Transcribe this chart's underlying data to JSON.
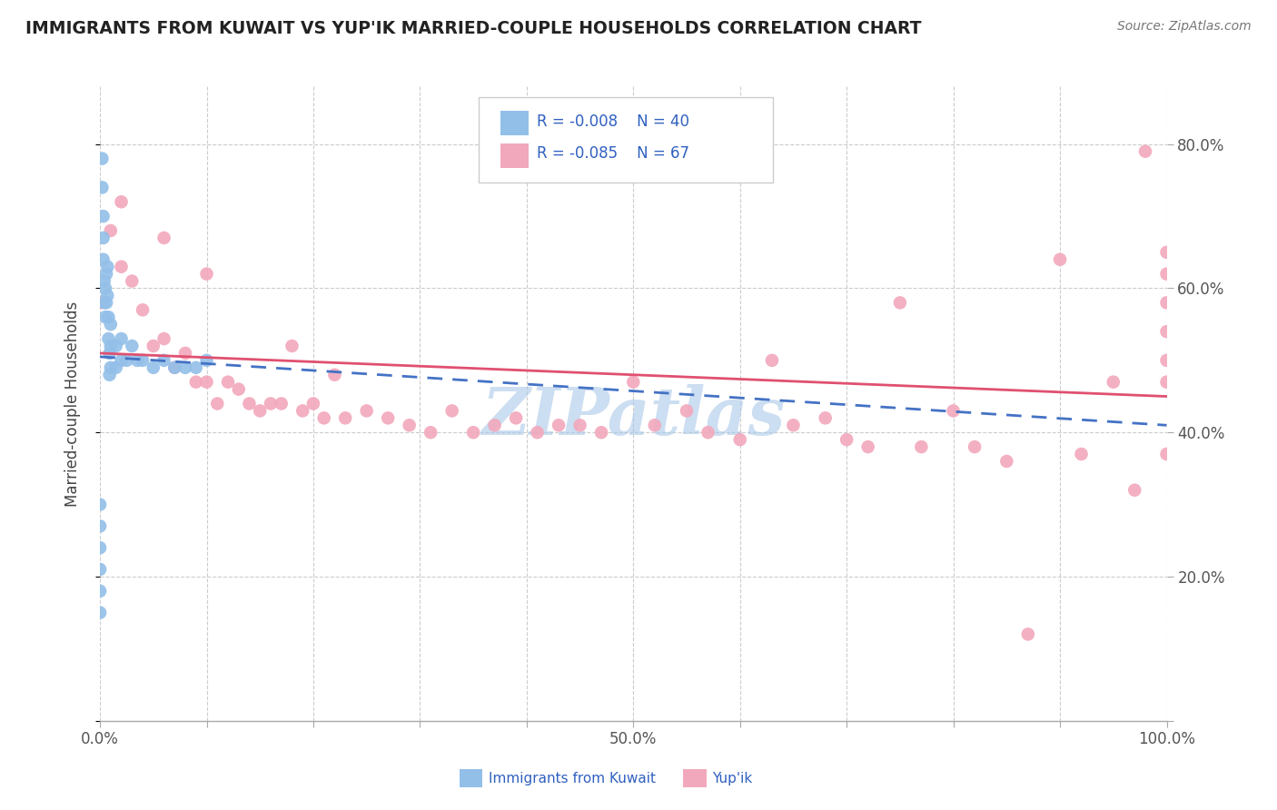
{
  "title": "IMMIGRANTS FROM KUWAIT VS YUP'IK MARRIED-COUPLE HOUSEHOLDS CORRELATION CHART",
  "source": "Source: ZipAtlas.com",
  "ylabel": "Married-couple Households",
  "xlim": [
    0.0,
    1.0
  ],
  "ylim": [
    0.0,
    0.88
  ],
  "x_ticks": [
    0.0,
    0.1,
    0.2,
    0.3,
    0.4,
    0.5,
    0.6,
    0.7,
    0.8,
    0.9,
    1.0
  ],
  "x_tick_labels": [
    "0.0%",
    "",
    "",
    "",
    "",
    "50.0%",
    "",
    "",
    "",
    "",
    "100.0%"
  ],
  "y_ticks": [
    0.0,
    0.2,
    0.4,
    0.6,
    0.8
  ],
  "y_tick_labels_right": [
    "",
    "20.0%",
    "40.0%",
    "60.0%",
    "80.0%"
  ],
  "series1_color": "#92bfe8",
  "series2_color": "#f2a8bc",
  "trendline1_color": "#4472c4",
  "trendline2_color": "#e05070",
  "watermark": "ZIPatlas",
  "watermark_color": "#aac8e8",
  "background_color": "#ffffff",
  "title_color": "#222222",
  "source_color": "#777777",
  "legend_text_color": "#3060c0",
  "blue_scatter_x": [
    0.002,
    0.002,
    0.003,
    0.003,
    0.003,
    0.004,
    0.004,
    0.005,
    0.005,
    0.006,
    0.006,
    0.007,
    0.007,
    0.008,
    0.008,
    0.009,
    0.009,
    0.01,
    0.01,
    0.01,
    0.015,
    0.015,
    0.02,
    0.02,
    0.025,
    0.03,
    0.035,
    0.04,
    0.05,
    0.06,
    0.07,
    0.08,
    0.09,
    0.1,
    0.0,
    0.0,
    0.0,
    0.0,
    0.0,
    0.0
  ],
  "blue_scatter_y": [
    0.78,
    0.74,
    0.7,
    0.67,
    0.64,
    0.61,
    0.58,
    0.6,
    0.56,
    0.62,
    0.58,
    0.63,
    0.59,
    0.56,
    0.53,
    0.51,
    0.48,
    0.55,
    0.52,
    0.49,
    0.52,
    0.49,
    0.53,
    0.5,
    0.5,
    0.52,
    0.5,
    0.5,
    0.49,
    0.5,
    0.49,
    0.49,
    0.49,
    0.5,
    0.3,
    0.27,
    0.24,
    0.21,
    0.18,
    0.15
  ],
  "pink_scatter_x": [
    0.0,
    0.01,
    0.02,
    0.03,
    0.04,
    0.05,
    0.06,
    0.07,
    0.08,
    0.09,
    0.1,
    0.11,
    0.12,
    0.13,
    0.14,
    0.15,
    0.16,
    0.17,
    0.18,
    0.19,
    0.2,
    0.21,
    0.22,
    0.23,
    0.25,
    0.27,
    0.29,
    0.31,
    0.33,
    0.35,
    0.37,
    0.39,
    0.41,
    0.43,
    0.45,
    0.47,
    0.5,
    0.52,
    0.55,
    0.57,
    0.6,
    0.63,
    0.65,
    0.68,
    0.7,
    0.72,
    0.75,
    0.77,
    0.8,
    0.82,
    0.85,
    0.87,
    0.9,
    0.92,
    0.95,
    0.97,
    0.98,
    1.0,
    1.0,
    1.0,
    1.0,
    1.0,
    1.0,
    1.0,
    0.02,
    0.06,
    0.1
  ],
  "pink_scatter_y": [
    0.58,
    0.68,
    0.63,
    0.61,
    0.57,
    0.52,
    0.53,
    0.49,
    0.51,
    0.47,
    0.47,
    0.44,
    0.47,
    0.46,
    0.44,
    0.43,
    0.44,
    0.44,
    0.52,
    0.43,
    0.44,
    0.42,
    0.48,
    0.42,
    0.43,
    0.42,
    0.41,
    0.4,
    0.43,
    0.4,
    0.41,
    0.42,
    0.4,
    0.41,
    0.41,
    0.4,
    0.47,
    0.41,
    0.43,
    0.4,
    0.39,
    0.5,
    0.41,
    0.42,
    0.39,
    0.38,
    0.58,
    0.38,
    0.43,
    0.38,
    0.36,
    0.12,
    0.64,
    0.37,
    0.47,
    0.32,
    0.79,
    0.65,
    0.62,
    0.58,
    0.54,
    0.5,
    0.47,
    0.37,
    0.72,
    0.67,
    0.62
  ],
  "trendline1_x0": 0.0,
  "trendline1_y0": 0.505,
  "trendline1_x1": 1.0,
  "trendline1_y1": 0.41,
  "trendline2_x0": 0.0,
  "trendline2_y0": 0.51,
  "trendline2_x1": 1.0,
  "trendline2_y1": 0.45
}
